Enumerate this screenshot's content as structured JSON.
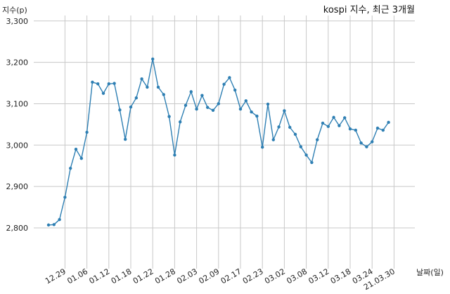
{
  "chart_data": {
    "type": "line",
    "title": "kospi 지수, 최근 3개월",
    "ylabel": "지수(p)",
    "xlabel": "날짜(일)",
    "ylim": [
      2700,
      3300
    ],
    "yticks": [
      2800,
      2900,
      3000,
      3100,
      3200,
      3300
    ],
    "ytick_labels": [
      "2,800",
      "2,900",
      "3,000",
      "3,100",
      "3,200",
      "3,300"
    ],
    "xtick_labels": [
      "12.29",
      "01.06",
      "01.12",
      "01.18",
      "01.22",
      "01.28",
      "02.03",
      "02.09",
      "02.17",
      "02.23",
      "03.02",
      "03.08",
      "03.12",
      "03.18",
      "03.24",
      "21.03.30"
    ],
    "xtick_indices": [
      3,
      7,
      11,
      15,
      19,
      23,
      27,
      31,
      35,
      39,
      43,
      47,
      51,
      55,
      59,
      63
    ],
    "grid": true,
    "color": "#2e7fb3",
    "series": [
      {
        "values": [
          2807,
          2808,
          2820,
          2874,
          2944,
          2990,
          2968,
          3031,
          3152,
          3148,
          3125,
          3148,
          3149,
          3085,
          3014,
          3092,
          3114,
          3160,
          3140,
          3208,
          3140,
          3122,
          3069,
          2976,
          3056,
          3096,
          3129,
          3087,
          3120,
          3091,
          3084,
          3100,
          3147,
          3163,
          3133,
          3087,
          3107,
          3080,
          3070,
          2995,
          3099,
          3013,
          3044,
          3083,
          3043,
          3026,
          2996,
          2976,
          2958,
          3013,
          3053,
          3045,
          3067,
          3047,
          3066,
          3039,
          3036,
          3005,
          2996,
          3008,
          3041,
          3036,
          3055
        ]
      }
    ]
  }
}
